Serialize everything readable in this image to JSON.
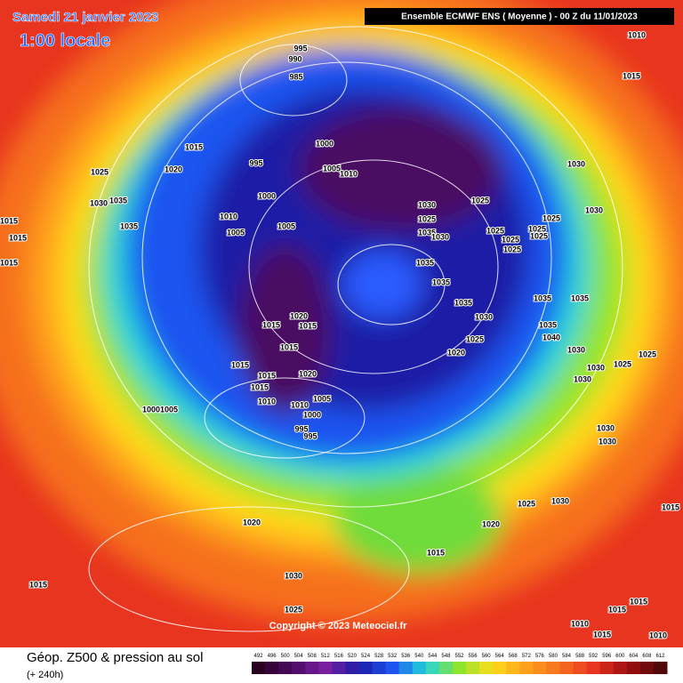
{
  "header": {
    "date": "Samedi 21 janvier 2023",
    "time": "1:00 locale",
    "model": "Ensemble ECMWF ENS  ( Moyenne )  -  00 Z du 11/01/2023"
  },
  "map": {
    "copyright": "Copyright © 2023 Meteociel.fr",
    "isobar_labels": [
      995,
      990,
      985,
      1000,
      995,
      1005,
      1010,
      1000,
      1010,
      1005,
      1005,
      1015,
      1020,
      1025,
      1015,
      1015,
      1015,
      1030,
      1035,
      1035,
      1030,
      1025,
      1035,
      1030,
      1025,
      1025,
      1025,
      1025,
      1025,
      1025,
      1025,
      1030,
      1030,
      1035,
      1035,
      1035,
      1030,
      1025,
      1020,
      1020,
      1015,
      1015,
      1015,
      1015,
      1015,
      1015,
      1020,
      1010,
      1010,
      1005,
      1000,
      995,
      995,
      1000,
      1005,
      1010,
      1015,
      1035,
      1035,
      1040,
      1035,
      1030,
      1030,
      1030,
      1025,
      1025,
      1030,
      1030,
      1020,
      1030,
      1025,
      1015,
      1015,
      1020,
      1025,
      1030,
      1015,
      1015,
      1015,
      1010,
      1015,
      1010
    ]
  },
  "footer": {
    "title": "Géop. Z500 & pression au sol",
    "lead": "(+ 240h)",
    "scale_ticks": [
      492,
      496,
      500,
      504,
      508,
      512,
      516,
      520,
      524,
      528,
      532,
      536,
      540,
      544,
      548,
      552,
      556,
      560,
      564,
      568,
      572,
      576,
      580,
      584,
      588,
      592,
      596,
      600,
      604,
      608,
      612
    ]
  }
}
